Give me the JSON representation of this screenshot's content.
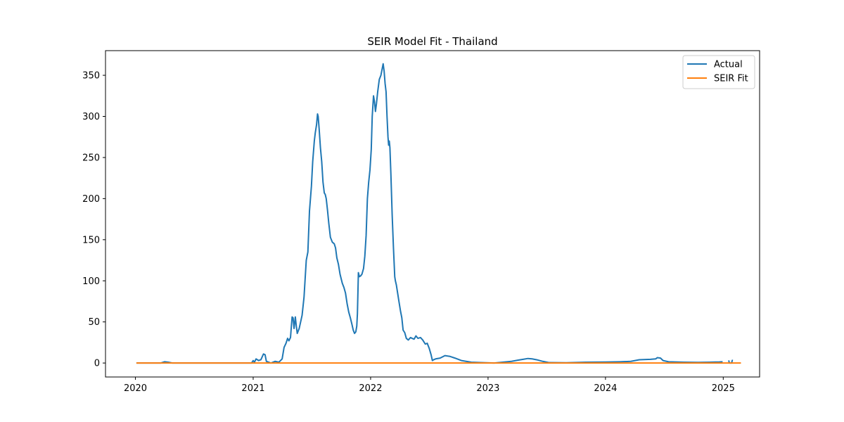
{
  "chart_data": {
    "type": "line",
    "title": "SEIR Model Fit - Thailand",
    "xlabel": "",
    "ylabel": "",
    "xlim": [
      "2019-09-30",
      "2025-04-24"
    ],
    "ylim": [
      -17,
      380
    ],
    "x_ticks": [
      {
        "value": "2020-01-01",
        "label": "2020"
      },
      {
        "value": "2021-01-01",
        "label": "2021"
      },
      {
        "value": "2022-01-01",
        "label": "2022"
      },
      {
        "value": "2023-01-01",
        "label": "2023"
      },
      {
        "value": "2024-01-01",
        "label": "2024"
      },
      {
        "value": "2025-01-01",
        "label": "2025"
      }
    ],
    "y_ticks": [
      {
        "value": 0,
        "label": "0"
      },
      {
        "value": 50,
        "label": "50"
      },
      {
        "value": 100,
        "label": "100"
      },
      {
        "value": 150,
        "label": "150"
      },
      {
        "value": 200,
        "label": "200"
      },
      {
        "value": 250,
        "label": "250"
      },
      {
        "value": 300,
        "label": "300"
      },
      {
        "value": 350,
        "label": "350"
      }
    ],
    "grid": false,
    "legend": {
      "position": "top-right"
    },
    "series": [
      {
        "name": "Actual",
        "color": "#1f77b4",
        "points": [
          [
            "2020-01-04",
            0
          ],
          [
            "2020-03-20",
            0
          ],
          [
            "2020-04-01",
            1.5
          ],
          [
            "2020-04-12",
            1
          ],
          [
            "2020-04-25",
            0
          ],
          [
            "2020-12-27",
            0
          ],
          [
            "2021-01-01",
            3
          ],
          [
            "2021-01-05",
            1
          ],
          [
            "2021-01-10",
            5
          ],
          [
            "2021-01-18",
            3
          ],
          [
            "2021-01-25",
            4
          ],
          [
            "2021-02-02",
            11
          ],
          [
            "2021-02-07",
            10
          ],
          [
            "2021-02-11",
            2
          ],
          [
            "2021-02-25",
            0
          ],
          [
            "2021-03-10",
            2
          ],
          [
            "2021-03-22",
            1
          ],
          [
            "2021-04-01",
            5
          ],
          [
            "2021-04-07",
            19
          ],
          [
            "2021-04-13",
            24
          ],
          [
            "2021-04-18",
            30
          ],
          [
            "2021-04-22",
            27
          ],
          [
            "2021-04-27",
            31
          ],
          [
            "2021-05-02",
            56
          ],
          [
            "2021-05-05",
            55
          ],
          [
            "2021-05-08",
            42
          ],
          [
            "2021-05-12",
            56
          ],
          [
            "2021-05-15",
            45
          ],
          [
            "2021-05-18",
            36
          ],
          [
            "2021-05-24",
            42
          ],
          [
            "2021-06-02",
            58
          ],
          [
            "2021-06-08",
            80
          ],
          [
            "2021-06-15",
            125
          ],
          [
            "2021-06-20",
            135
          ],
          [
            "2021-06-25",
            185
          ],
          [
            "2021-07-01",
            215
          ],
          [
            "2021-07-05",
            245
          ],
          [
            "2021-07-10",
            270
          ],
          [
            "2021-07-13",
            280
          ],
          [
            "2021-07-17",
            290
          ],
          [
            "2021-07-20",
            303
          ],
          [
            "2021-07-22",
            300
          ],
          [
            "2021-07-25",
            285
          ],
          [
            "2021-07-29",
            262
          ],
          [
            "2021-08-02",
            245
          ],
          [
            "2021-08-06",
            220
          ],
          [
            "2021-08-10",
            207
          ],
          [
            "2021-08-13",
            205
          ],
          [
            "2021-08-16",
            200
          ],
          [
            "2021-08-20",
            186
          ],
          [
            "2021-08-24",
            170
          ],
          [
            "2021-08-29",
            153
          ],
          [
            "2021-09-04",
            147
          ],
          [
            "2021-09-10",
            145
          ],
          [
            "2021-09-14",
            140
          ],
          [
            "2021-09-18",
            128
          ],
          [
            "2021-09-23",
            120
          ],
          [
            "2021-09-28",
            108
          ],
          [
            "2021-10-05",
            97
          ],
          [
            "2021-10-10",
            92
          ],
          [
            "2021-10-15",
            85
          ],
          [
            "2021-10-20",
            72
          ],
          [
            "2021-10-25",
            62
          ],
          [
            "2021-10-30",
            55
          ],
          [
            "2021-11-04",
            47
          ],
          [
            "2021-11-08",
            40
          ],
          [
            "2021-11-12",
            36
          ],
          [
            "2021-11-16",
            38
          ],
          [
            "2021-11-19",
            45
          ],
          [
            "2021-11-21",
            60
          ],
          [
            "2021-11-24",
            110
          ],
          [
            "2021-11-27",
            105
          ],
          [
            "2021-12-01",
            106
          ],
          [
            "2021-12-05",
            108
          ],
          [
            "2021-12-10",
            115
          ],
          [
            "2021-12-14",
            130
          ],
          [
            "2021-12-18",
            155
          ],
          [
            "2021-12-22",
            200
          ],
          [
            "2021-12-26",
            220
          ],
          [
            "2021-12-30",
            235
          ],
          [
            "2022-01-03",
            260
          ],
          [
            "2022-01-06",
            300
          ],
          [
            "2022-01-10",
            325
          ],
          [
            "2022-01-13",
            318
          ],
          [
            "2022-01-16",
            306
          ],
          [
            "2022-01-19",
            315
          ],
          [
            "2022-01-23",
            330
          ],
          [
            "2022-01-28",
            345
          ],
          [
            "2022-02-02",
            350
          ],
          [
            "2022-02-06",
            358
          ],
          [
            "2022-02-09",
            364
          ],
          [
            "2022-02-12",
            355
          ],
          [
            "2022-02-15",
            340
          ],
          [
            "2022-02-18",
            330
          ],
          [
            "2022-02-21",
            300
          ],
          [
            "2022-02-24",
            275
          ],
          [
            "2022-02-26",
            265
          ],
          [
            "2022-02-28",
            270
          ],
          [
            "2022-03-02",
            262
          ],
          [
            "2022-03-05",
            230
          ],
          [
            "2022-03-09",
            180
          ],
          [
            "2022-03-13",
            140
          ],
          [
            "2022-03-17",
            105
          ],
          [
            "2022-03-19",
            100
          ],
          [
            "2022-03-22",
            95
          ],
          [
            "2022-03-26",
            85
          ],
          [
            "2022-03-30",
            75
          ],
          [
            "2022-04-04",
            63
          ],
          [
            "2022-04-08",
            55
          ],
          [
            "2022-04-12",
            40
          ],
          [
            "2022-04-17",
            37
          ],
          [
            "2022-04-22",
            30
          ],
          [
            "2022-04-28",
            28
          ],
          [
            "2022-05-05",
            31
          ],
          [
            "2022-05-10",
            30
          ],
          [
            "2022-05-16",
            29
          ],
          [
            "2022-05-22",
            33
          ],
          [
            "2022-05-28",
            30
          ],
          [
            "2022-06-05",
            31
          ],
          [
            "2022-06-12",
            28
          ],
          [
            "2022-06-20",
            23
          ],
          [
            "2022-06-26",
            24
          ],
          [
            "2022-07-02",
            18
          ],
          [
            "2022-07-08",
            10
          ],
          [
            "2022-07-12",
            3
          ],
          [
            "2022-07-16",
            4
          ],
          [
            "2022-07-22",
            5
          ],
          [
            "2022-08-05",
            6
          ],
          [
            "2022-08-20",
            9
          ],
          [
            "2022-09-05",
            8
          ],
          [
            "2022-09-20",
            6
          ],
          [
            "2022-10-10",
            3
          ],
          [
            "2022-11-10",
            1
          ],
          [
            "2022-12-10",
            0.5
          ],
          [
            "2023-01-20",
            0
          ],
          [
            "2023-02-15",
            1
          ],
          [
            "2023-03-15",
            2
          ],
          [
            "2023-04-05",
            3.5
          ],
          [
            "2023-04-20",
            4.5
          ],
          [
            "2023-05-05",
            5.5
          ],
          [
            "2023-05-18",
            5
          ],
          [
            "2023-06-01",
            4
          ],
          [
            "2023-06-20",
            2
          ],
          [
            "2023-07-10",
            0.5
          ],
          [
            "2023-09-01",
            0.3
          ],
          [
            "2023-11-01",
            1
          ],
          [
            "2024-01-01",
            1.2
          ],
          [
            "2024-02-15",
            1.5
          ],
          [
            "2024-03-20",
            2
          ],
          [
            "2024-04-15",
            4
          ],
          [
            "2024-05-20",
            4.5
          ],
          [
            "2024-06-05",
            5
          ],
          [
            "2024-06-10",
            6.5
          ],
          [
            "2024-06-20",
            6
          ],
          [
            "2024-06-28",
            3
          ],
          [
            "2024-07-15",
            1.5
          ],
          [
            "2024-09-01",
            1
          ],
          [
            "2024-10-15",
            0.7
          ],
          [
            "2024-11-20",
            1
          ],
          [
            "2024-12-20",
            1.3
          ],
          [
            "2024-12-30",
            1.5
          ],
          [
            "2025-01-02",
            null
          ],
          [
            "2025-01-18",
            3.2
          ],
          [
            "2025-01-20",
            0
          ],
          [
            "2025-01-27",
            0
          ],
          [
            "2025-01-29",
            3.2
          ],
          [
            "2025-01-31",
            3
          ]
        ]
      },
      {
        "name": "SEIR Fit",
        "color": "#ff7f0e",
        "points": [
          [
            "2020-01-04",
            0
          ],
          [
            "2025-02-25",
            0
          ]
        ]
      }
    ]
  }
}
